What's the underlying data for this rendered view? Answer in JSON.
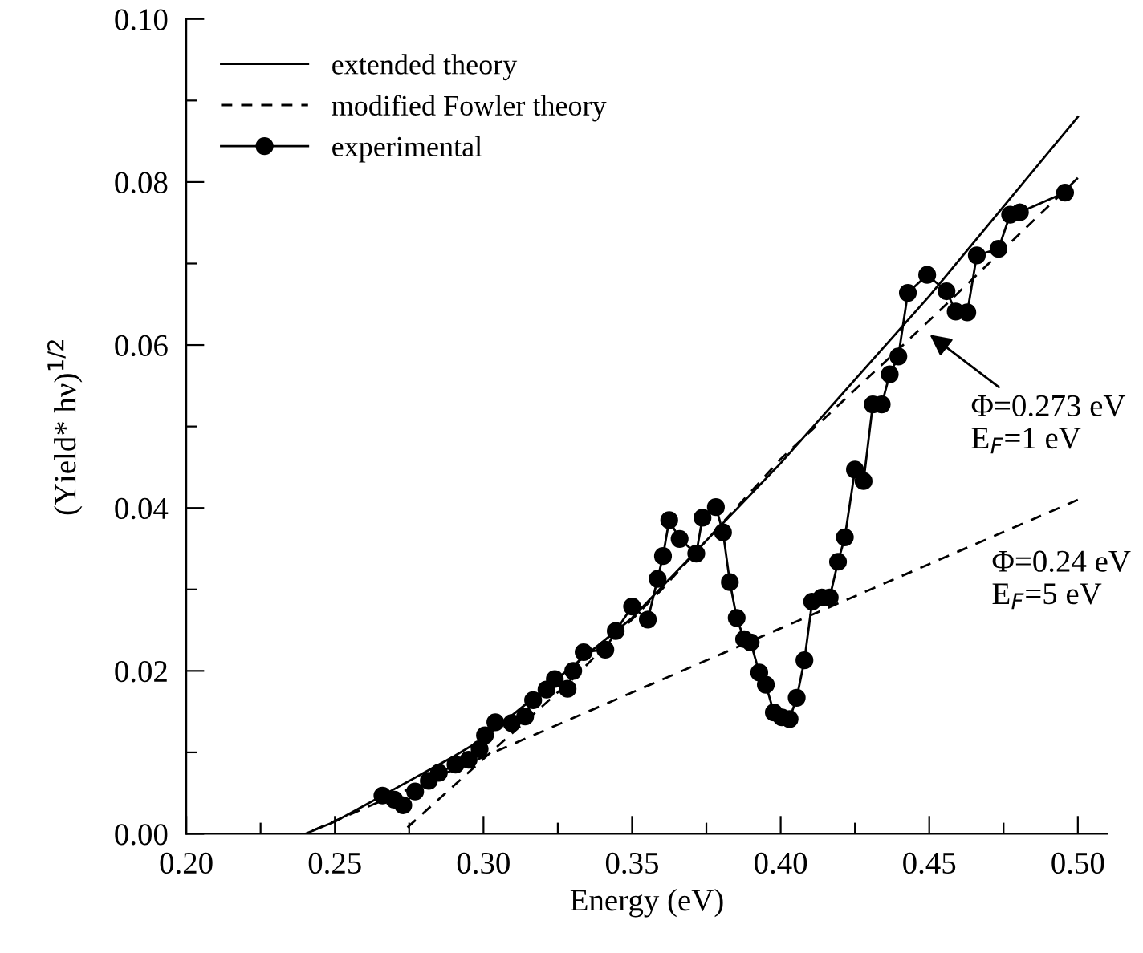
{
  "chart_data": {
    "type": "line",
    "xlabel": "Energy (eV)",
    "ylabel": "(Yield* hν)$^{1/2}$",
    "xlim": [
      0.2,
      0.51
    ],
    "ylim": [
      0.0,
      0.1
    ],
    "xticks": [
      {
        "value": 0.2,
        "label": "0.20"
      },
      {
        "value": 0.225,
        "label": null
      },
      {
        "value": 0.25,
        "label": "0.25"
      },
      {
        "value": 0.275,
        "label": null
      },
      {
        "value": 0.3,
        "label": "0.30"
      },
      {
        "value": 0.325,
        "label": null
      },
      {
        "value": 0.35,
        "label": "0.35"
      },
      {
        "value": 0.375,
        "label": null
      },
      {
        "value": 0.4,
        "label": "0.40"
      },
      {
        "value": 0.425,
        "label": null
      },
      {
        "value": 0.45,
        "label": "0.45"
      },
      {
        "value": 0.475,
        "label": null
      },
      {
        "value": 0.5,
        "label": "0.50"
      }
    ],
    "yticks": [
      {
        "value": 0.0,
        "label": "0.00"
      },
      {
        "value": 0.01,
        "label": null
      },
      {
        "value": 0.02,
        "label": "0.02"
      },
      {
        "value": 0.03,
        "label": null
      },
      {
        "value": 0.04,
        "label": "0.04"
      },
      {
        "value": 0.05,
        "label": null
      },
      {
        "value": 0.06,
        "label": "0.06"
      },
      {
        "value": 0.07,
        "label": null
      },
      {
        "value": 0.08,
        "label": "0.08"
      },
      {
        "value": 0.09,
        "label": null
      },
      {
        "value": 0.1,
        "label": "0.10"
      }
    ],
    "grid": false,
    "legend": "top left",
    "series": [
      {
        "name": "extended theory",
        "color": "#000000",
        "line_style": "solid",
        "marker": "none",
        "x": [
          0.24,
          0.25,
          0.26,
          0.27,
          0.28,
          0.29,
          0.3,
          0.35,
          0.4,
          0.45,
          0.5
        ],
        "values": [
          0.0,
          0.0015,
          0.0035,
          0.0055,
          0.0075,
          0.0095,
          0.0117,
          0.0265,
          0.0455,
          0.066,
          0.088
        ]
      },
      {
        "name": "modified Fowler theory",
        "color": "#000000",
        "line_style": "dashed",
        "marker": "none",
        "x": [
          0.272,
          0.3,
          0.33,
          0.36,
          0.4,
          0.45,
          0.5
        ],
        "values": [
          0.0,
          0.0092,
          0.019,
          0.03,
          0.046,
          0.063,
          0.0805
        ]
      },
      {
        "color": "#000000",
        "line_style": "dashed",
        "marker": "none",
        "x": [
          0.24,
          0.5
        ],
        "values": [
          0.0,
          0.041
        ]
      },
      {
        "name": "experimental",
        "color": "#000000",
        "line_style": "solid",
        "marker": "circle",
        "x": [
          0.266,
          0.27,
          0.273,
          0.277,
          0.2816,
          0.285,
          0.2906,
          0.295,
          0.2987,
          0.3005,
          0.304,
          0.3095,
          0.314,
          0.3167,
          0.3212,
          0.324,
          0.3283,
          0.3302,
          0.3337,
          0.341,
          0.3445,
          0.35,
          0.3553,
          0.3586,
          0.3604,
          0.3625,
          0.366,
          0.3716,
          0.3737,
          0.3782,
          0.3806,
          0.3829,
          0.3852,
          0.3877,
          0.3899,
          0.3928,
          0.395,
          0.3977,
          0.4004,
          0.403,
          0.4054,
          0.408,
          0.4106,
          0.4138,
          0.4165,
          0.4193,
          0.4216,
          0.425,
          0.4279,
          0.431,
          0.434,
          0.4367,
          0.4396,
          0.4428,
          0.4493,
          0.4558,
          0.4589,
          0.4628,
          0.466,
          0.4733,
          0.4772,
          0.4805,
          0.4957
        ],
        "values": [
          0.0047,
          0.0042,
          0.0035,
          0.0052,
          0.0065,
          0.0075,
          0.0085,
          0.0091,
          0.0104,
          0.0121,
          0.0137,
          0.0136,
          0.0144,
          0.0164,
          0.0177,
          0.019,
          0.0178,
          0.02,
          0.0223,
          0.0226,
          0.0249,
          0.0279,
          0.0263,
          0.0313,
          0.0341,
          0.0385,
          0.0362,
          0.0344,
          0.0388,
          0.0401,
          0.037,
          0.0309,
          0.0265,
          0.0239,
          0.0235,
          0.0198,
          0.0183,
          0.0149,
          0.0143,
          0.0141,
          0.0167,
          0.0213,
          0.0285,
          0.029,
          0.029,
          0.0334,
          0.0364,
          0.0447,
          0.0433,
          0.0527,
          0.0527,
          0.0564,
          0.0586,
          0.0664,
          0.0686,
          0.0666,
          0.0641,
          0.064,
          0.071,
          0.0718,
          0.076,
          0.0763,
          0.0787
        ]
      }
    ],
    "annotations": [
      {
        "text": "Φ=0.273 eV\nE$_{F}$=1 eV",
        "x": 0.449,
        "y": 0.0616
      },
      {
        "text": "Φ=0.24 eV\nE$_{F}$=5 eV",
        "x": 0.465,
        "y": 0.0354
      }
    ]
  }
}
